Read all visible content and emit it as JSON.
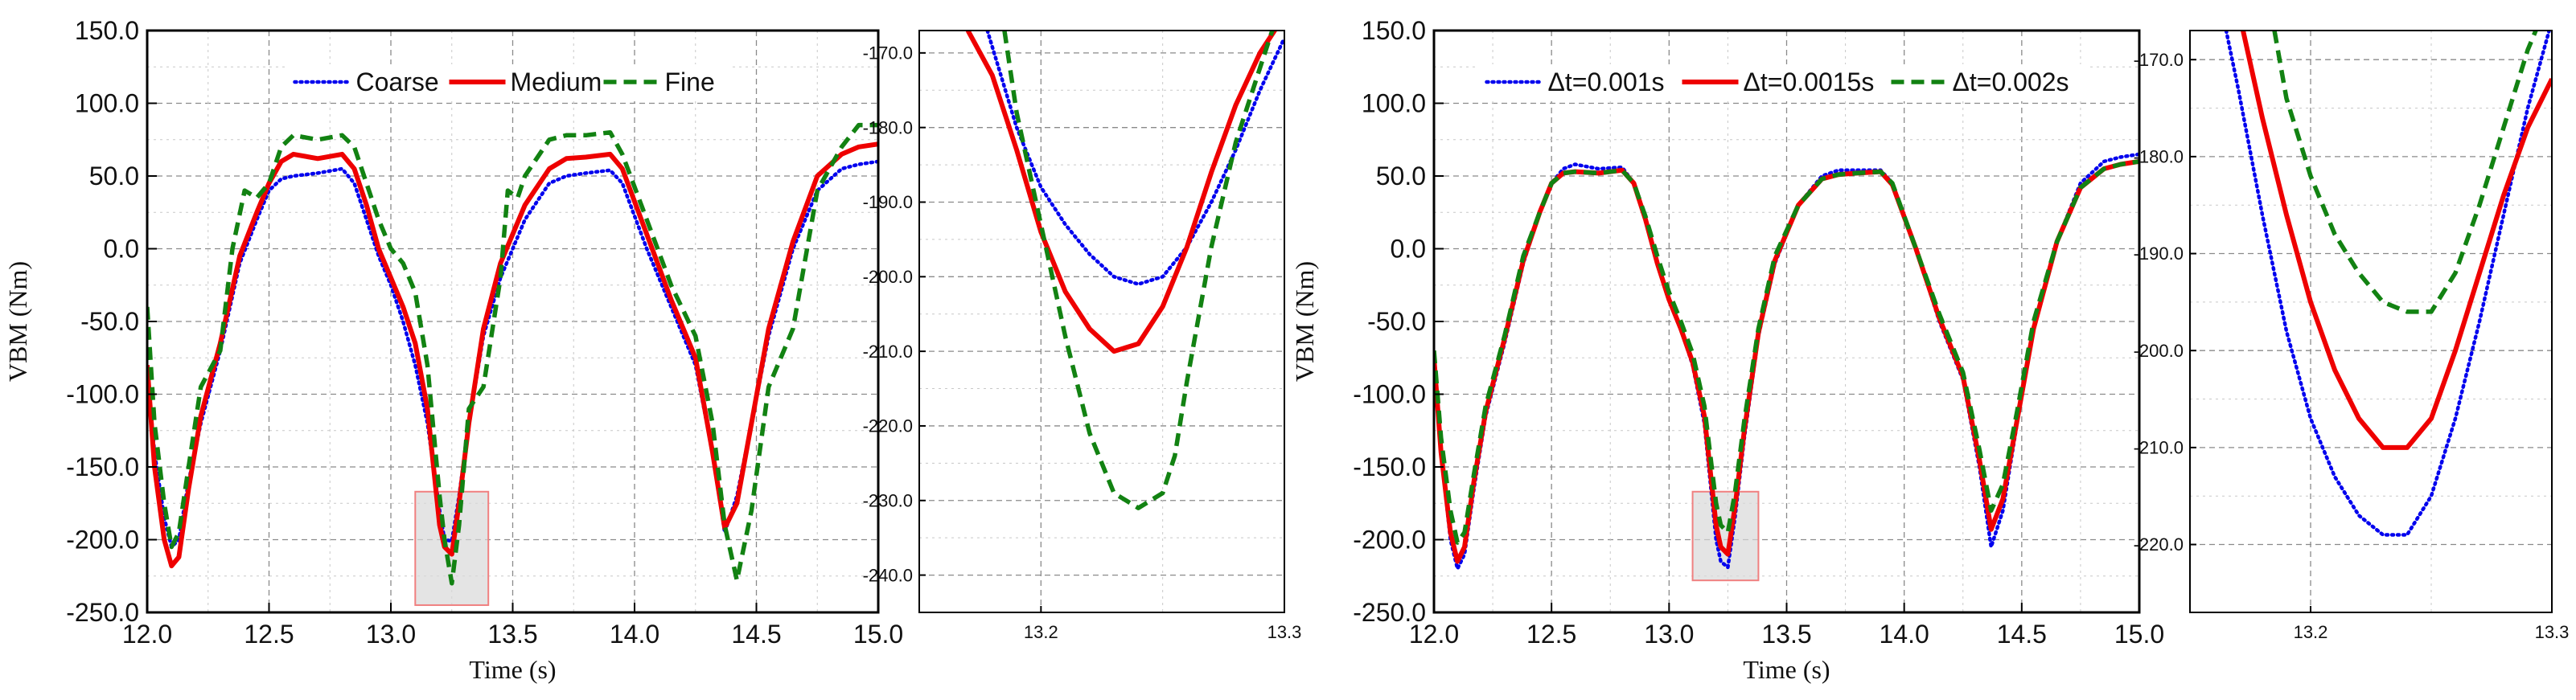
{
  "colors": {
    "coarse": "#0000ee",
    "medium": "#ee0000",
    "fine": "#128212",
    "grid": "#8a8a8a",
    "inset_box_fill": "#d8d8d8",
    "inset_box_stroke": "#f08080"
  },
  "chart_data": [
    {
      "id": "mesh",
      "type": "line",
      "xlabel": "Time (s)",
      "ylabel": "VBM (Nm)",
      "xlim": [
        12.0,
        15.0
      ],
      "ylim": [
        -250,
        150
      ],
      "xticks": [
        12.0,
        12.5,
        13.0,
        13.5,
        14.0,
        14.5,
        15.0
      ],
      "xtick_labels": [
        "12.0",
        "12.5",
        "13.0",
        "13.5",
        "14.0",
        "14.5",
        "15.0"
      ],
      "yticks": [
        -250,
        -200,
        -150,
        -100,
        -50,
        0,
        50,
        100,
        150
      ],
      "ytick_labels": [
        "-250.0",
        "-200.0",
        "-150.0",
        "-100.0",
        "-50.0",
        "0.0",
        "50.0",
        "100.0",
        "150.0"
      ],
      "grid": true,
      "legend_position": "top",
      "zoom_box": {
        "x": [
          13.1,
          13.4
        ],
        "y": [
          -245,
          -167
        ]
      },
      "series": [
        {
          "name": "Coarse",
          "style": "dotted",
          "color": "#0000ee",
          "x": [
            12.0,
            12.03,
            12.07,
            12.1,
            12.13,
            12.17,
            12.22,
            12.3,
            12.38,
            12.45,
            12.5,
            12.55,
            12.6,
            12.7,
            12.8,
            12.85,
            12.9,
            12.95,
            13.0,
            13.05,
            13.1,
            13.15,
            13.2,
            13.22,
            13.25,
            13.28,
            13.32,
            13.38,
            13.45,
            13.55,
            13.65,
            13.72,
            13.8,
            13.9,
            13.95,
            14.05,
            14.15,
            14.25,
            14.32,
            14.37,
            14.42,
            14.48,
            14.55,
            14.65,
            14.75,
            14.85,
            14.92,
            15.0
          ],
          "y": [
            -85,
            -140,
            -185,
            -205,
            -200,
            -160,
            -120,
            -70,
            -10,
            20,
            40,
            48,
            50,
            52,
            55,
            45,
            20,
            -5,
            -25,
            -50,
            -80,
            -120,
            -180,
            -200,
            -201,
            -170,
            -120,
            -60,
            -20,
            20,
            45,
            50,
            52,
            54,
            45,
            0,
            -40,
            -80,
            -140,
            -195,
            -170,
            -120,
            -60,
            0,
            40,
            55,
            58,
            60
          ]
        },
        {
          "name": "Medium",
          "style": "solid",
          "color": "#ee0000",
          "x": [
            12.0,
            12.03,
            12.07,
            12.1,
            12.13,
            12.17,
            12.22,
            12.3,
            12.38,
            12.45,
            12.5,
            12.55,
            12.6,
            12.7,
            12.8,
            12.85,
            12.9,
            12.95,
            13.0,
            13.05,
            13.1,
            13.15,
            13.2,
            13.22,
            13.25,
            13.28,
            13.32,
            13.38,
            13.45,
            13.55,
            13.65,
            13.72,
            13.8,
            13.9,
            13.95,
            14.05,
            14.15,
            14.25,
            14.32,
            14.37,
            14.42,
            14.48,
            14.55,
            14.65,
            14.75,
            14.85,
            14.92,
            15.0
          ],
          "y": [
            -80,
            -150,
            -200,
            -218,
            -212,
            -165,
            -115,
            -65,
            -5,
            25,
            45,
            60,
            65,
            62,
            65,
            55,
            30,
            0,
            -20,
            -40,
            -65,
            -110,
            -190,
            -205,
            -210,
            -175,
            -120,
            -55,
            -10,
            30,
            55,
            62,
            63,
            65,
            55,
            10,
            -35,
            -75,
            -140,
            -192,
            -175,
            -120,
            -55,
            5,
            50,
            65,
            70,
            72
          ]
        },
        {
          "name": "Fine",
          "style": "dashed",
          "color": "#128212",
          "x": [
            12.0,
            12.03,
            12.07,
            12.1,
            12.13,
            12.17,
            12.22,
            12.3,
            12.35,
            12.4,
            12.45,
            12.5,
            12.55,
            12.6,
            12.7,
            12.8,
            12.85,
            12.9,
            12.95,
            13.0,
            13.05,
            13.1,
            13.15,
            13.2,
            13.22,
            13.25,
            13.28,
            13.32,
            13.38,
            13.45,
            13.48,
            13.52,
            13.55,
            13.65,
            13.72,
            13.8,
            13.9,
            13.95,
            14.05,
            14.15,
            14.25,
            14.32,
            14.37,
            14.42,
            14.48,
            14.55,
            14.65,
            14.75,
            14.85,
            14.92,
            15.0
          ],
          "y": [
            -40,
            -120,
            -175,
            -205,
            -195,
            -150,
            -95,
            -70,
            0,
            40,
            35,
            45,
            70,
            78,
            75,
            78,
            70,
            45,
            20,
            0,
            -10,
            -30,
            -80,
            -170,
            -200,
            -230,
            -190,
            -110,
            -95,
            -20,
            40,
            35,
            50,
            75,
            78,
            78,
            80,
            65,
            20,
            -25,
            -60,
            -120,
            -190,
            -228,
            -180,
            -95,
            -55,
            40,
            70,
            85,
            85
          ]
        }
      ]
    },
    {
      "id": "mesh-zoom",
      "type": "line",
      "xlabel": "",
      "ylabel": "",
      "xlim": [
        13.15,
        13.3
      ],
      "ylim": [
        -245,
        -167
      ],
      "xticks": [
        13.2,
        13.3
      ],
      "xtick_labels": [
        "13.2",
        "13.3"
      ],
      "yticks": [
        -170,
        -180,
        -190,
        -200,
        -210,
        -220,
        -230,
        -240
      ],
      "ytick_labels": [
        "-170.0",
        "-180.0",
        "-190.0",
        "-200.0",
        "-210.0",
        "-220.0",
        "-230.0",
        "-240.0"
      ],
      "grid": true,
      "series": [
        {
          "name": "Coarse",
          "style": "dotted",
          "color": "#0000ee",
          "x": [
            13.178,
            13.19,
            13.2,
            13.21,
            13.22,
            13.23,
            13.24,
            13.25,
            13.26,
            13.27,
            13.28,
            13.29,
            13.3
          ],
          "y": [
            -167,
            -180,
            -188,
            -193,
            -197,
            -200,
            -201,
            -200,
            -196,
            -190,
            -183,
            -175,
            -168
          ]
        },
        {
          "name": "Medium",
          "style": "solid",
          "color": "#ee0000",
          "x": [
            13.17,
            13.18,
            13.19,
            13.2,
            13.21,
            13.22,
            13.23,
            13.24,
            13.25,
            13.26,
            13.27,
            13.28,
            13.29,
            13.3
          ],
          "y": [
            -167,
            -173,
            -183,
            -194,
            -202,
            -207,
            -210,
            -209,
            -204,
            -196,
            -186,
            -177,
            -170,
            -165
          ]
        },
        {
          "name": "Fine",
          "style": "dashed",
          "color": "#128212",
          "x": [
            13.185,
            13.19,
            13.2,
            13.21,
            13.22,
            13.23,
            13.24,
            13.25,
            13.255,
            13.26,
            13.27,
            13.28,
            13.29,
            13.295
          ],
          "y": [
            -167,
            -178,
            -193,
            -208,
            -221,
            -229,
            -231,
            -229,
            -224,
            -214,
            -196,
            -182,
            -172,
            -167
          ]
        }
      ]
    },
    {
      "id": "timestep",
      "type": "line",
      "xlabel": "Time (s)",
      "ylabel": "VBM (Nm)",
      "xlim": [
        12.0,
        15.0
      ],
      "ylim": [
        -250,
        150
      ],
      "xticks": [
        12.0,
        12.5,
        13.0,
        13.5,
        14.0,
        14.5,
        15.0
      ],
      "xtick_labels": [
        "12.0",
        "12.5",
        "13.0",
        "13.5",
        "14.0",
        "14.5",
        "15.0"
      ],
      "yticks": [
        -250,
        -200,
        -150,
        -100,
        -50,
        0,
        50,
        100,
        150
      ],
      "ytick_labels": [
        "-250.0",
        "-200.0",
        "-150.0",
        "-100.0",
        "-50.0",
        "0.0",
        "50.0",
        "100.0",
        "150.0"
      ],
      "grid": true,
      "legend_position": "top",
      "zoom_box": {
        "x": [
          13.1,
          13.38
        ],
        "y": [
          -228,
          -167
        ]
      },
      "series": [
        {
          "name": "Δt=0.001s",
          "style": "dotted",
          "color": "#0000ee",
          "x": [
            12.0,
            12.03,
            12.07,
            12.1,
            12.13,
            12.17,
            12.22,
            12.3,
            12.38,
            12.45,
            12.5,
            12.55,
            12.6,
            12.7,
            12.8,
            12.85,
            12.9,
            12.95,
            13.0,
            13.05,
            13.1,
            13.15,
            13.2,
            13.22,
            13.25,
            13.28,
            13.32,
            13.38,
            13.45,
            13.55,
            13.65,
            13.72,
            13.8,
            13.9,
            13.95,
            14.05,
            14.15,
            14.25,
            14.32,
            14.37,
            14.42,
            14.48,
            14.55,
            14.65,
            14.75,
            14.85,
            14.92,
            15.0
          ],
          "y": [
            -75,
            -140,
            -200,
            -220,
            -210,
            -165,
            -115,
            -65,
            -10,
            25,
            45,
            55,
            58,
            55,
            56,
            45,
            20,
            -10,
            -35,
            -55,
            -80,
            -120,
            -200,
            -215,
            -219,
            -185,
            -130,
            -60,
            -10,
            30,
            50,
            54,
            54,
            54,
            45,
            0,
            -50,
            -90,
            -150,
            -205,
            -180,
            -120,
            -55,
            5,
            45,
            60,
            63,
            65
          ]
        },
        {
          "name": "Δt=0.0015s",
          "style": "solid",
          "color": "#ee0000",
          "x": [
            12.0,
            12.03,
            12.07,
            12.1,
            12.13,
            12.17,
            12.22,
            12.3,
            12.38,
            12.45,
            12.5,
            12.55,
            12.6,
            12.7,
            12.8,
            12.85,
            12.9,
            12.95,
            13.0,
            13.05,
            13.1,
            13.15,
            13.2,
            13.22,
            13.25,
            13.28,
            13.32,
            13.38,
            13.45,
            13.55,
            13.65,
            13.72,
            13.8,
            13.9,
            13.95,
            14.05,
            14.15,
            14.25,
            14.32,
            14.37,
            14.42,
            14.48,
            14.55,
            14.65,
            14.75,
            14.85,
            14.92,
            15.0
          ],
          "y": [
            -75,
            -140,
            -195,
            -215,
            -205,
            -160,
            -112,
            -62,
            -8,
            25,
            45,
            52,
            53,
            52,
            54,
            45,
            20,
            -10,
            -35,
            -55,
            -78,
            -115,
            -190,
            -205,
            -210,
            -178,
            -125,
            -58,
            -8,
            30,
            48,
            51,
            52,
            53,
            44,
            0,
            -48,
            -88,
            -145,
            -193,
            -172,
            -118,
            -55,
            5,
            42,
            55,
            58,
            60
          ]
        },
        {
          "name": "Δt=0.002s",
          "style": "dashed",
          "color": "#128212",
          "x": [
            12.0,
            12.03,
            12.07,
            12.1,
            12.13,
            12.17,
            12.22,
            12.3,
            12.38,
            12.45,
            12.5,
            12.55,
            12.6,
            12.7,
            12.8,
            12.85,
            12.9,
            12.95,
            13.0,
            13.05,
            13.1,
            13.15,
            13.2,
            13.22,
            13.25,
            13.28,
            13.32,
            13.38,
            13.45,
            13.55,
            13.65,
            13.72,
            13.8,
            13.9,
            13.95,
            14.05,
            14.15,
            14.25,
            14.32,
            14.37,
            14.42,
            14.48,
            14.55,
            14.65,
            14.75,
            14.85,
            14.92,
            15.0
          ],
          "y": [
            -70,
            -130,
            -180,
            -202,
            -195,
            -155,
            -108,
            -60,
            -5,
            25,
            45,
            52,
            53,
            52,
            54,
            45,
            22,
            -5,
            -30,
            -50,
            -72,
            -108,
            -175,
            -190,
            -195,
            -168,
            -118,
            -55,
            -5,
            30,
            48,
            51,
            52,
            53,
            45,
            0,
            -45,
            -85,
            -138,
            -180,
            -162,
            -112,
            -50,
            5,
            42,
            55,
            58,
            60
          ]
        }
      ]
    },
    {
      "id": "timestep-zoom",
      "type": "line",
      "xlabel": "",
      "ylabel": "",
      "xlim": [
        13.15,
        13.3
      ],
      "ylim": [
        -227,
        -167
      ],
      "xticks": [
        13.2,
        13.3
      ],
      "xtick_labels": [
        "13.2",
        "13.3"
      ],
      "yticks": [
        -170,
        -180,
        -190,
        -200,
        -210,
        -220
      ],
      "ytick_labels": [
        "-170.0",
        "-180.0",
        "-190.0",
        "-200.0",
        "-210.0",
        "-220.0"
      ],
      "grid": true,
      "series": [
        {
          "name": "Δt=0.001s",
          "style": "dotted",
          "color": "#0000ee",
          "x": [
            13.165,
            13.17,
            13.18,
            13.19,
            13.2,
            13.21,
            13.22,
            13.23,
            13.24,
            13.25,
            13.26,
            13.27,
            13.28,
            13.29,
            13.3
          ],
          "y": [
            -167,
            -173,
            -186,
            -198,
            -207,
            -213,
            -217,
            -219,
            -219,
            -215,
            -207,
            -197,
            -186,
            -175,
            -166
          ]
        },
        {
          "name": "Δt=0.0015s",
          "style": "solid",
          "color": "#ee0000",
          "x": [
            13.172,
            13.18,
            13.19,
            13.2,
            13.21,
            13.22,
            13.23,
            13.24,
            13.25,
            13.26,
            13.27,
            13.28,
            13.29,
            13.3
          ],
          "y": [
            -167,
            -176,
            -186,
            -195,
            -202,
            -207,
            -210,
            -210,
            -207,
            -200,
            -192,
            -184,
            -177,
            -172
          ]
        },
        {
          "name": "Δt=0.002s",
          "style": "dashed",
          "color": "#128212",
          "x": [
            13.185,
            13.19,
            13.2,
            13.21,
            13.22,
            13.23,
            13.24,
            13.25,
            13.26,
            13.27,
            13.28,
            13.29,
            13.295
          ],
          "y": [
            -167,
            -174,
            -182,
            -188,
            -192,
            -195,
            -196,
            -196,
            -192,
            -185,
            -177,
            -169,
            -166
          ]
        }
      ]
    }
  ]
}
